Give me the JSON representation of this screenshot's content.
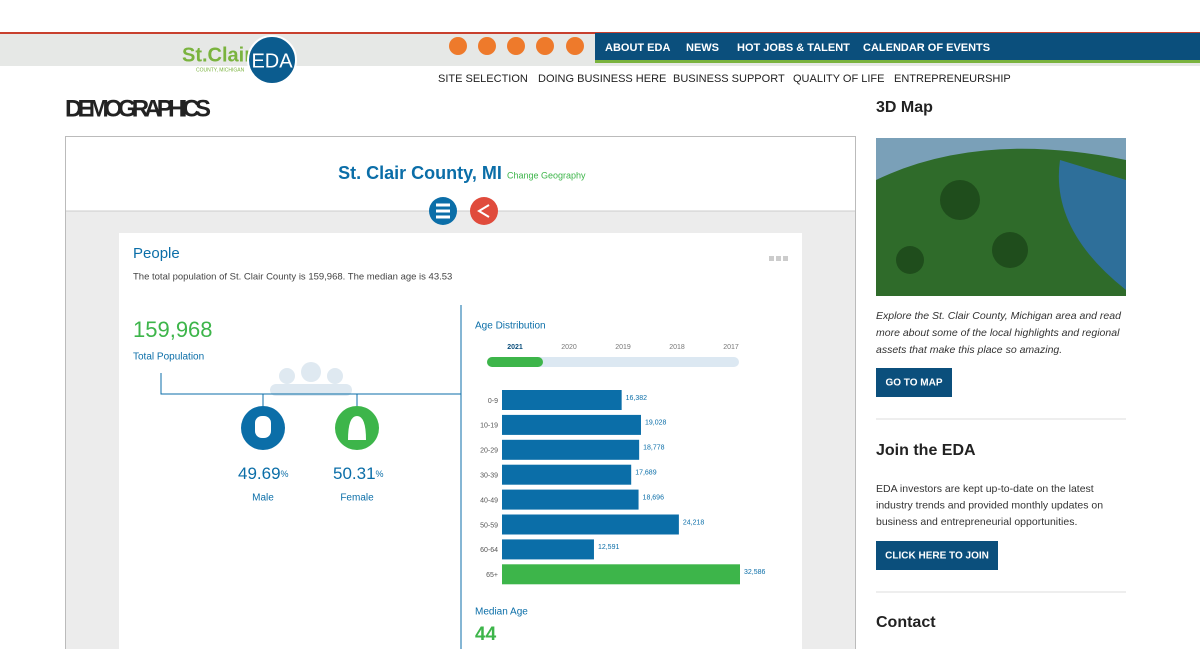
{
  "header": {
    "logo_name": "St.Clair",
    "logo_sub": "COUNTY, MICHIGAN",
    "logo_badge": "EDA",
    "top_nav": [
      "ABOUT EDA",
      "NEWS",
      "HOT JOBS & TALENT",
      "CALENDAR OF EVENTS"
    ],
    "main_nav": [
      "SITE SELECTION",
      "DOING BUSINESS HERE",
      "BUSINESS SUPPORT",
      "QUALITY OF LIFE",
      "ENTREPRENEURSHIP"
    ]
  },
  "page_title": "DEMOGRAPHICS",
  "widget": {
    "geography": "St. Clair County, MI",
    "change_link": "Change Geography",
    "people": {
      "title": "People",
      "summary": "The total population of St. Clair County is 159,968. The median age is 43.53",
      "total": "159,968",
      "total_label": "Total Population",
      "male": {
        "percent": "49.69",
        "percent_sign": "%",
        "label": "Male"
      },
      "female": {
        "percent": "50.31",
        "percent_sign": "%",
        "label": "Female"
      },
      "age_distribution": {
        "type": "bar",
        "title": "Age Distribution",
        "years": [
          "2021",
          "2020",
          "2019",
          "2018",
          "2017"
        ],
        "categories": [
          "0-9",
          "10-19",
          "20-29",
          "30-39",
          "40-49",
          "50-59",
          "60-64",
          "65+"
        ],
        "values": [
          16382,
          19028,
          18778,
          17689,
          18696,
          24218,
          12591,
          32586
        ],
        "value_labels": [
          "16,382",
          "19,028",
          "18,778",
          "17,689",
          "18,696",
          "24,218",
          "12,591",
          "32,586"
        ],
        "colors": [
          "#0b6ea8",
          "#0b6ea8",
          "#0b6ea8",
          "#0b6ea8",
          "#0b6ea8",
          "#0b6ea8",
          "#0b6ea8",
          "#3db54a"
        ]
      },
      "median_age_label": "Median Age",
      "median_age": "44"
    }
  },
  "sidebar": {
    "map": {
      "title": "3D Map",
      "text": [
        "Explore the St. Clair County, Michigan area and read",
        "more about some of the local highlights and regional",
        "assets that make this place so amazing."
      ],
      "button": "GO TO MAP"
    },
    "join": {
      "title": "Join the EDA",
      "text": [
        "EDA investors are kept up-to-date on the latest",
        "industry trends and provided monthly updates on",
        "business and entrepreneurial opportunities."
      ],
      "button": "CLICK HERE TO JOIN"
    },
    "contact": {
      "title": "Contact"
    }
  }
}
